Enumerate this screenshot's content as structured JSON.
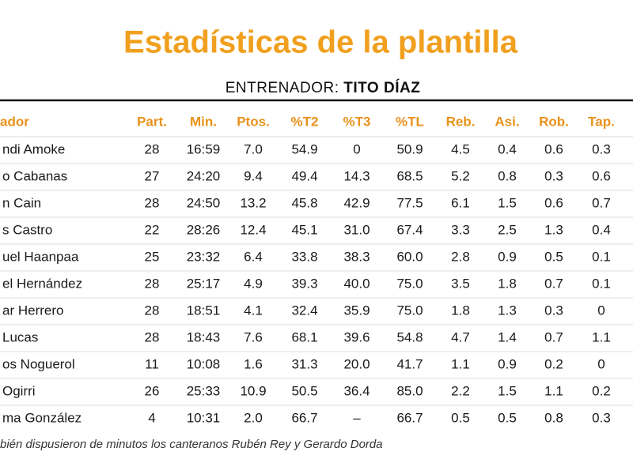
{
  "header": {
    "title": "Estadísticas de la plantilla",
    "subtitle": {
      "label": "ENTRENADOR: ",
      "name": "TITO DÍAZ"
    }
  },
  "table": {
    "columns": [
      "ador",
      "Part.",
      "Min.",
      "Ptos.",
      "%T2",
      "%T3",
      "%TL",
      "Reb.",
      "Asi.",
      "Rob.",
      "Tap."
    ],
    "rows": [
      [
        "ndi Amoke",
        "28",
        "16:59",
        "7.0",
        "54.9",
        "0",
        "50.9",
        "4.5",
        "0.4",
        "0.6",
        "0.3"
      ],
      [
        "o Cabanas",
        "27",
        "24:20",
        "9.4",
        "49.4",
        "14.3",
        "68.5",
        "5.2",
        "0.8",
        "0.3",
        "0.6"
      ],
      [
        "n Cain",
        "28",
        "24:50",
        "13.2",
        "45.8",
        "42.9",
        "77.5",
        "6.1",
        "1.5",
        "0.6",
        "0.7"
      ],
      [
        "s Castro",
        "22",
        "28:26",
        "12.4",
        "45.1",
        "31.0",
        "67.4",
        "3.3",
        "2.5",
        "1.3",
        "0.4"
      ],
      [
        "uel Haanpaa",
        "25",
        "23:32",
        "6.4",
        "33.8",
        "38.3",
        "60.0",
        "2.8",
        "0.9",
        "0.5",
        "0.1"
      ],
      [
        "el Hernández",
        "28",
        "25:17",
        "4.9",
        "39.3",
        "40.0",
        "75.0",
        "3.5",
        "1.8",
        "0.7",
        "0.1"
      ],
      [
        "ar Herrero",
        "28",
        "18:51",
        "4.1",
        "32.4",
        "35.9",
        "75.0",
        "1.8",
        "1.3",
        "0.3",
        "0"
      ],
      [
        "Lucas",
        "28",
        "18:43",
        "7.6",
        "68.1",
        "39.6",
        "54.8",
        "4.7",
        "1.4",
        "0.7",
        "1.1"
      ],
      [
        "os Noguerol",
        "11",
        "10:08",
        "1.6",
        "31.3",
        "20.0",
        "41.7",
        "1.1",
        "0.9",
        "0.2",
        "0"
      ],
      [
        "Ogirri",
        "26",
        "25:33",
        "10.9",
        "50.5",
        "36.4",
        "85.0",
        "2.2",
        "1.5",
        "1.1",
        "0.2"
      ],
      [
        "ma González",
        "4",
        "10:31",
        "2.0",
        "66.7",
        "–",
        "66.7",
        "0.5",
        "0.5",
        "0.8",
        "0.3"
      ]
    ]
  },
  "footnote": "bién dispusieron de minutos los canteranos Rubén Rey y Gerardo Dorda"
}
